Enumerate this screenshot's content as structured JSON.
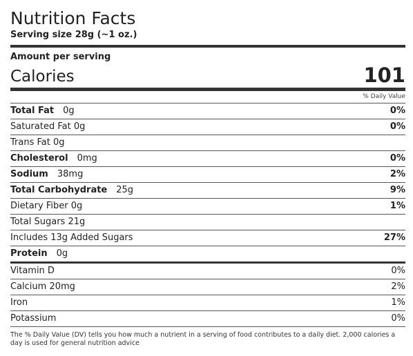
{
  "header": {
    "title": "Nutrition Facts",
    "serving": "Serving size 28g (~1 oz.)",
    "amount_label": "Amount per serving",
    "calories_label": "Calories",
    "calories": "101",
    "dv_label": "% Daily Value"
  },
  "nutrients": [
    {
      "label": "Total Fat",
      "amount": "0g",
      "dv": "0%"
    },
    {
      "label": "Saturated Fat 0g",
      "dv": "0%"
    },
    {
      "label": "Trans Fat 0g"
    },
    {
      "label": "Cholesterol",
      "amount": "0mg",
      "dv": "0%"
    },
    {
      "label": "Sodium",
      "amount": "38mg",
      "dv": "2%"
    },
    {
      "label": "Total Carbohydrate",
      "amount": "25g",
      "dv": "9%"
    },
    {
      "label": "Dietary Fiber 0g",
      "dv": "1%"
    },
    {
      "label": "Total Sugars 21g"
    },
    {
      "label": "Includes 13g Added Sugars",
      "dv": "27%"
    },
    {
      "label": "Protein",
      "amount": "0g"
    }
  ],
  "vitamins": [
    {
      "label": "Vitamin D",
      "dv": "0%"
    },
    {
      "label": "Calcium 20mg",
      "dv": "2%"
    },
    {
      "label": "Iron",
      "dv": "1%"
    },
    {
      "label": "Potassium",
      "dv": "0%"
    }
  ],
  "footnote": "The % Daily Value (DV) tells you how much a nutrient in a serving of food contributes to a daily diet. 2,000 calories a day is used for general nutrition advice"
}
